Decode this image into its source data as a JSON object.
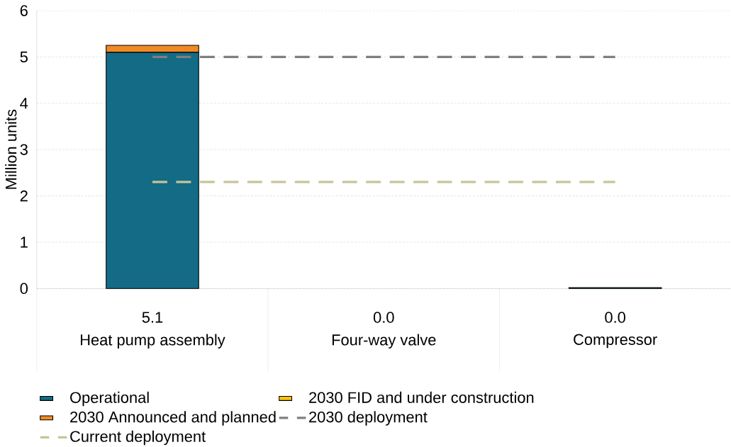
{
  "chart_data": {
    "type": "bar",
    "stacked": true,
    "ylabel": "Million units",
    "categories": [
      "Heat pump assembly",
      "Four-way valve",
      "Compressor"
    ],
    "ylim": [
      0,
      6
    ],
    "yticks": [
      0,
      1,
      2,
      3,
      4,
      5,
      6
    ],
    "grid": "y",
    "legend": "bottom",
    "value_labels": [
      "5.1",
      "0.0",
      "0.0"
    ],
    "series": [
      {
        "name": "Operational",
        "color": "#136b86",
        "values": [
          5.1,
          0,
          0.02
        ]
      },
      {
        "name": "2030 FID and under construction",
        "color": "#ffc20e",
        "values": [
          0,
          0,
          0
        ]
      },
      {
        "name": "2030 Announced and planned",
        "color": "#f08a24",
        "values": [
          0.15,
          0,
          0
        ]
      },
      {
        "name": "2030 deployment",
        "type": "line",
        "line_style": "dashed",
        "marker": "none",
        "color": "#7f7f7f",
        "values": [
          5,
          5,
          5
        ]
      },
      {
        "name": "Current deployment",
        "type": "line",
        "line_style": "dashed",
        "marker": "none",
        "color": "#c8c39a",
        "values": [
          2.3,
          2.3,
          2.3
        ]
      }
    ]
  }
}
